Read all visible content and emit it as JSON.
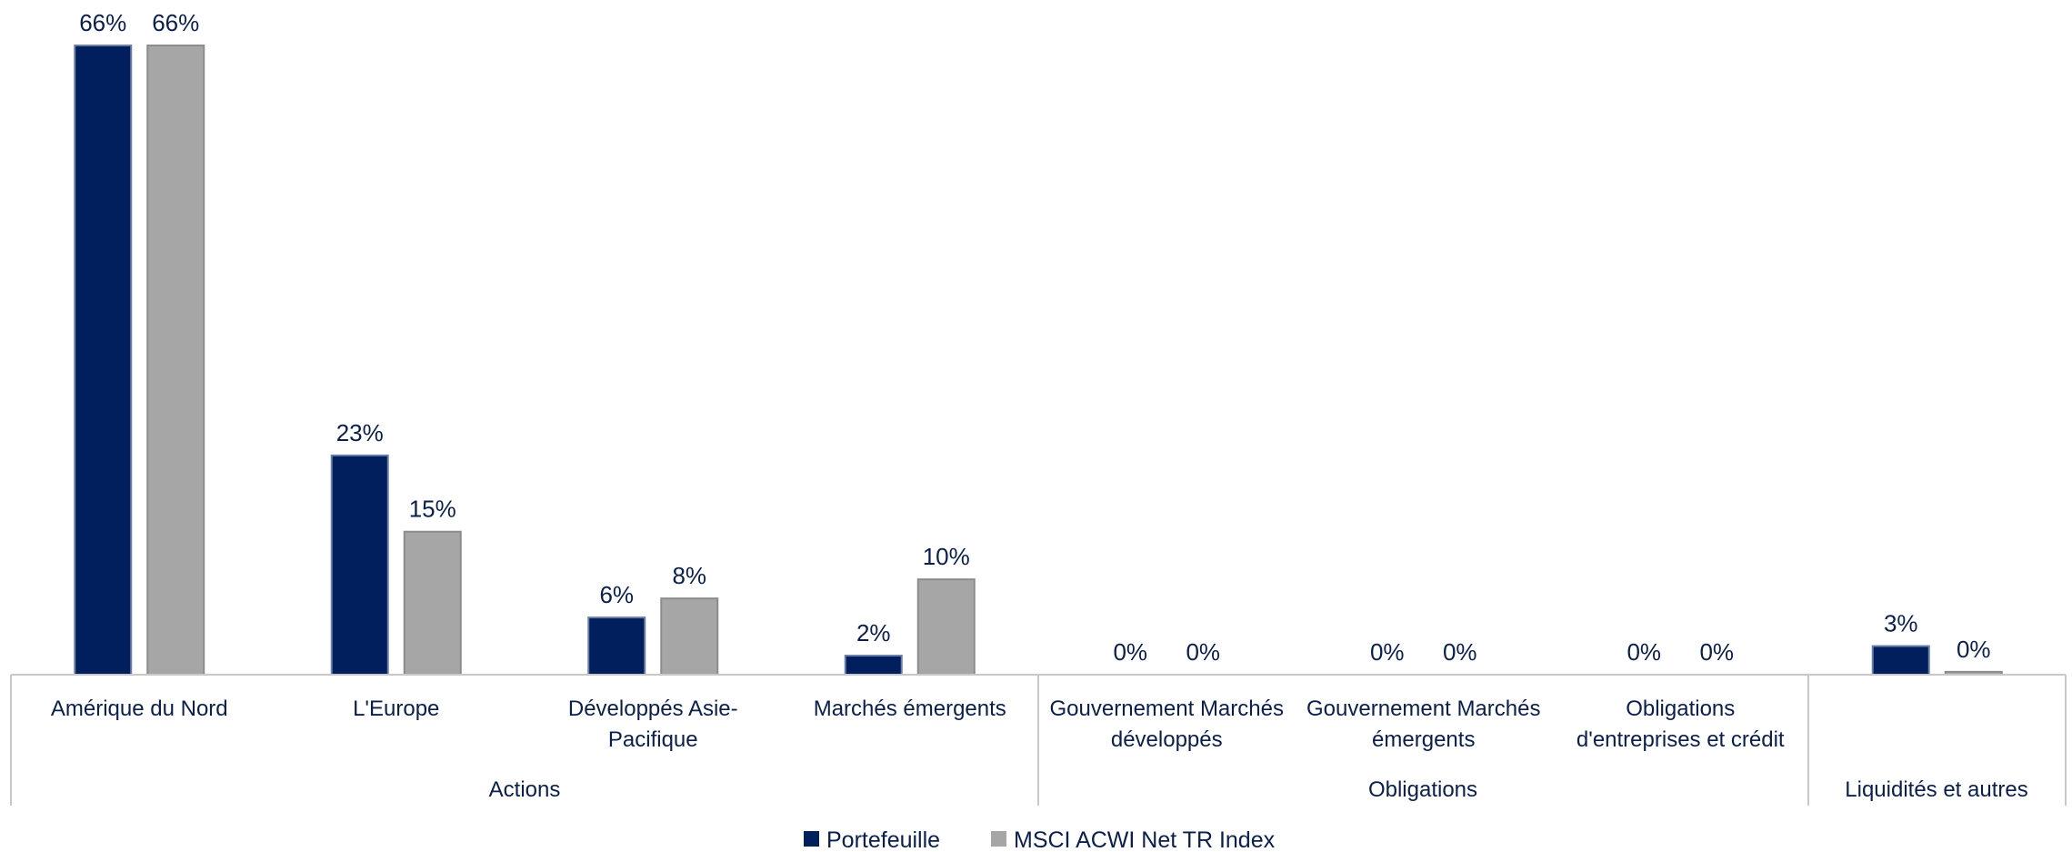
{
  "chart_data": {
    "type": "bar",
    "groups": [
      {
        "label": "Actions",
        "categories": [
          "Amérique du Nord",
          "L'Europe",
          "Développés Asie-Pacifique",
          "Marchés émergents"
        ]
      },
      {
        "label": "Obligations",
        "categories": [
          "Gouvernement Marchés développés",
          "Gouvernement Marchés émergents",
          "Obligations d'entreprises et crédit"
        ]
      },
      {
        "label": "Liquidités et autres",
        "categories": [
          ""
        ]
      }
    ],
    "category_lines": [
      [
        "Amérique du Nord"
      ],
      [
        "L'Europe"
      ],
      [
        "Développés Asie-",
        "Pacifique"
      ],
      [
        "Marchés émergents"
      ],
      [
        "Gouvernement Marchés",
        "développés"
      ],
      [
        "Gouvernement Marchés",
        "émergents"
      ],
      [
        "Obligations",
        "d'entreprises et crédit"
      ],
      [
        ""
      ]
    ],
    "series": [
      {
        "name": "Portefeuille",
        "color": "#001f5c",
        "values": [
          66,
          23,
          6,
          2,
          0,
          0,
          0,
          3
        ],
        "labels": [
          "66%",
          "23%",
          "6%",
          "2%",
          "0%",
          "0%",
          "0%",
          "3%"
        ]
      },
      {
        "name": "MSCI ACWI Net TR Index",
        "color": "#a6a6a6",
        "values": [
          66,
          15,
          8,
          10,
          0,
          0,
          0,
          0.3
        ],
        "labels": [
          "66%",
          "15%",
          "8%",
          "10%",
          "0%",
          "0%",
          "0%",
          "0%"
        ]
      }
    ],
    "ylim": [
      0,
      70
    ],
    "legend": "bottom",
    "grid": false
  }
}
